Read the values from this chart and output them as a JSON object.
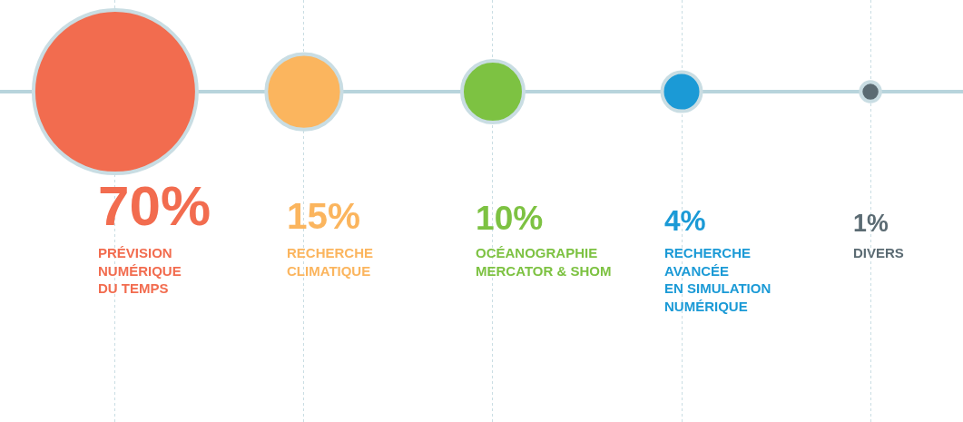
{
  "chart_data": {
    "type": "other",
    "categories": [
      "PRÉVISION\nNUMÉRIQUE\nDU TEMPS",
      "RECHERCHE\nCLIMATIQUE",
      "OCÉANOGRAPHIE\nMERCATOR & SHOM",
      "RECHERCHE\nAVANCÉE\nEN SIMULATION\nNUMÉRIQUE",
      "DIVERS"
    ],
    "values": [
      70,
      15,
      10,
      4,
      1
    ],
    "value_labels": [
      "70%",
      "15%",
      "10%",
      "4%",
      "1%"
    ],
    "colors": [
      "#f26c4f",
      "#fbb55e",
      "#7dc242",
      "#1b9ad6",
      "#5b6b73"
    ],
    "legend": false
  }
}
